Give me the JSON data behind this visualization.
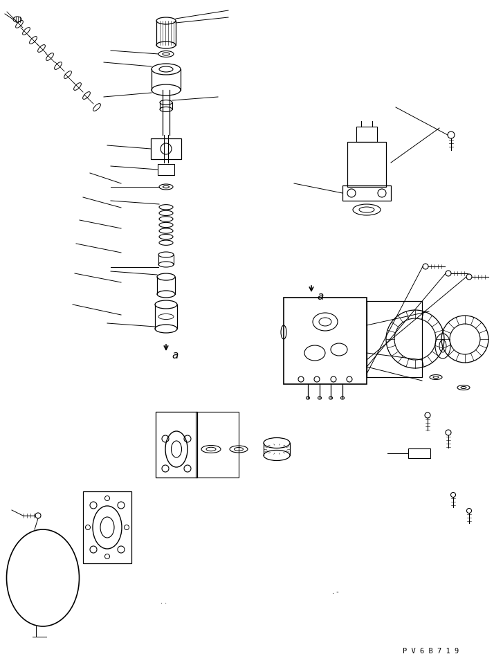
{
  "bg_color": "#ffffff",
  "line_color": "#000000",
  "watermark": "P V 6 B 7 1 9",
  "figsize": [
    7.27,
    9.58
  ],
  "dpi": 100
}
